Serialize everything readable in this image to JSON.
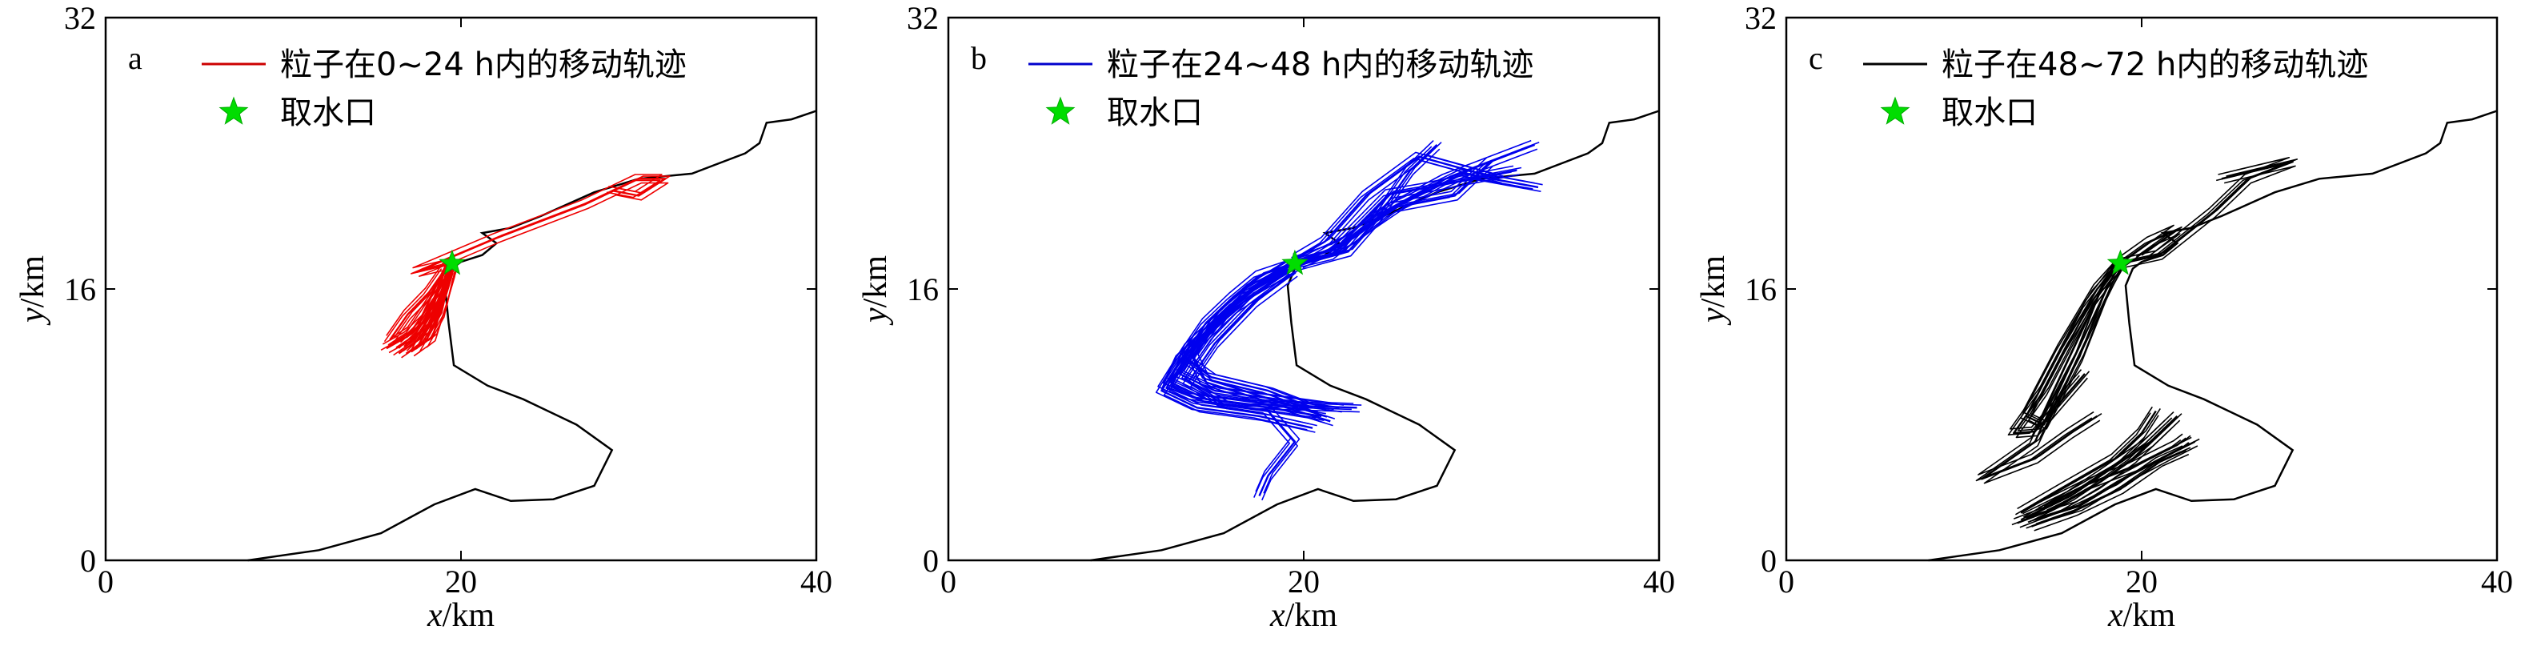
{
  "figure": {
    "panels_count": 3
  },
  "chart_data": [
    {
      "type": "line",
      "panel_letter": "a",
      "xlabel": {
        "var": "x",
        "unit": "/km"
      },
      "ylabel": {
        "var": "y",
        "unit": "/km"
      },
      "xlim": [
        0,
        40
      ],
      "ylim": [
        0,
        32
      ],
      "xticks": [
        0,
        20,
        40
      ],
      "yticks": [
        0,
        16,
        32
      ],
      "grid": false,
      "legend_position": "top-left",
      "legend": [
        {
          "label": "粒子在0~24 h内的移动轨迹",
          "kind": "line",
          "color": "#cc0000"
        },
        {
          "label": "取水口",
          "kind": "star",
          "color": "#00dd00"
        }
      ],
      "intake_point": [
        19.5,
        17.5
      ],
      "trajectory_color": "#ee0000",
      "trajectories": [
        [
          [
            19.5,
            17.5
          ],
          [
            17.5,
            17.0
          ],
          [
            22.0,
            19.0
          ],
          [
            27.0,
            21.0
          ],
          [
            30.0,
            22.5
          ],
          [
            31.5,
            22.5
          ],
          [
            30.0,
            21.5
          ],
          [
            28.5,
            21.8
          ]
        ],
        [
          [
            19.4,
            17.3
          ],
          [
            18.8,
            16.0
          ],
          [
            18.0,
            14.2
          ],
          [
            17.0,
            13.2
          ],
          [
            15.8,
            12.5
          ]
        ],
        [
          [
            19.3,
            17.0
          ],
          [
            18.5,
            15.5
          ],
          [
            17.2,
            13.5
          ],
          [
            16.2,
            12.8
          ]
        ],
        [
          [
            19.2,
            16.8
          ],
          [
            18.6,
            15.0
          ],
          [
            17.8,
            13.6
          ],
          [
            16.8,
            12.6
          ]
        ],
        [
          [
            19.4,
            17.2
          ],
          [
            19.0,
            15.8
          ],
          [
            18.2,
            13.8
          ],
          [
            17.5,
            12.5
          ]
        ],
        [
          [
            19.3,
            17.1
          ],
          [
            18.7,
            14.8
          ],
          [
            17.6,
            13.0
          ],
          [
            16.5,
            12.2
          ]
        ],
        [
          [
            19.5,
            17.0
          ],
          [
            19.0,
            15.2
          ],
          [
            18.4,
            13.2
          ],
          [
            17.9,
            12.8
          ]
        ],
        [
          [
            19.2,
            17.3
          ],
          [
            18.2,
            15.8
          ],
          [
            17.0,
            14.5
          ],
          [
            16.0,
            13.0
          ]
        ],
        [
          [
            19.4,
            16.9
          ],
          [
            18.9,
            14.6
          ],
          [
            18.0,
            12.9
          ],
          [
            17.2,
            12.3
          ]
        ]
      ]
    },
    {
      "type": "line",
      "panel_letter": "b",
      "xlabel": {
        "var": "x",
        "unit": "/km"
      },
      "ylabel": {
        "var": "y",
        "unit": "/km"
      },
      "xlim": [
        0,
        40
      ],
      "ylim": [
        0,
        32
      ],
      "xticks": [
        0,
        20,
        40
      ],
      "yticks": [
        0,
        16,
        32
      ],
      "grid": false,
      "legend_position": "top-left",
      "legend": [
        {
          "label": "粒子在24~48 h内的移动轨迹",
          "kind": "line",
          "color": "#0000cc"
        },
        {
          "label": "取水口",
          "kind": "star",
          "color": "#00dd00"
        }
      ],
      "intake_point": [
        19.5,
        17.5
      ],
      "trajectory_color": "#0000ee",
      "trajectories": [
        [
          [
            19.5,
            17.5
          ],
          [
            17.0,
            16.0
          ],
          [
            14.0,
            13.0
          ],
          [
            12.5,
            10.5
          ],
          [
            14.5,
            9.5
          ],
          [
            18.0,
            9.0
          ],
          [
            21.0,
            8.5
          ]
        ],
        [
          [
            19.4,
            17.3
          ],
          [
            16.5,
            15.5
          ],
          [
            13.5,
            12.5
          ],
          [
            12.0,
            10.0
          ],
          [
            14.0,
            9.0
          ],
          [
            17.5,
            8.5
          ],
          [
            20.5,
            7.8
          ]
        ],
        [
          [
            19.3,
            17.1
          ],
          [
            16.8,
            15.8
          ],
          [
            14.5,
            13.5
          ],
          [
            13.0,
            11.0
          ],
          [
            15.0,
            10.0
          ],
          [
            18.5,
            9.5
          ],
          [
            22.0,
            9.0
          ]
        ],
        [
          [
            19.5,
            17.0
          ],
          [
            17.2,
            15.2
          ],
          [
            15.0,
            12.8
          ],
          [
            13.5,
            10.5
          ],
          [
            15.5,
            9.2
          ],
          [
            18.0,
            8.8
          ],
          [
            19.5,
            7.0
          ],
          [
            18.0,
            5.0
          ],
          [
            17.5,
            3.8
          ]
        ],
        [
          [
            19.2,
            17.4
          ],
          [
            17.8,
            16.5
          ],
          [
            15.5,
            14.5
          ],
          [
            13.8,
            12.0
          ],
          [
            14.5,
            10.5
          ],
          [
            17.5,
            9.5
          ],
          [
            21.5,
            8.2
          ]
        ],
        [
          [
            19.4,
            17.2
          ],
          [
            16.0,
            14.8
          ],
          [
            13.0,
            11.8
          ],
          [
            12.3,
            10.2
          ],
          [
            13.8,
            9.6
          ],
          [
            17.0,
            9.2
          ],
          [
            23.0,
            9.0
          ]
        ],
        [
          [
            19.5,
            17.5
          ],
          [
            17.5,
            16.8
          ],
          [
            16.0,
            15.5
          ],
          [
            14.5,
            14.0
          ],
          [
            13.2,
            12.0
          ],
          [
            14.8,
            10.8
          ],
          [
            18.0,
            10.0
          ],
          [
            20.5,
            9.0
          ]
        ],
        [
          [
            19.5,
            17.5
          ],
          [
            21.5,
            18.0
          ],
          [
            24.5,
            20.5
          ],
          [
            28.0,
            22.5
          ],
          [
            33.0,
            24.5
          ]
        ],
        [
          [
            19.6,
            17.6
          ],
          [
            22.0,
            18.5
          ],
          [
            25.5,
            21.0
          ],
          [
            29.0,
            22.8
          ],
          [
            33.2,
            22.0
          ]
        ],
        [
          [
            19.7,
            17.4
          ],
          [
            22.5,
            18.2
          ],
          [
            24.0,
            20.0
          ],
          [
            26.0,
            23.0
          ],
          [
            27.5,
            24.5
          ]
        ],
        [
          [
            19.6,
            17.8
          ],
          [
            21.2,
            18.8
          ],
          [
            23.5,
            21.5
          ],
          [
            26.5,
            23.8
          ],
          [
            31.0,
            22.5
          ]
        ],
        [
          [
            19.8,
            17.5
          ],
          [
            22.8,
            19.0
          ],
          [
            25.0,
            20.8
          ],
          [
            28.5,
            21.5
          ],
          [
            30.5,
            23.5
          ]
        ],
        [
          [
            19.5,
            17.6
          ],
          [
            21.8,
            18.4
          ],
          [
            24.8,
            21.6
          ],
          [
            27.0,
            22.0
          ],
          [
            32.0,
            23.0
          ]
        ]
      ]
    },
    {
      "type": "line",
      "panel_letter": "c",
      "xlabel": {
        "var": "x",
        "unit": "/km"
      },
      "ylabel": {
        "var": "y",
        "unit": "/km"
      },
      "xlim": [
        0,
        40
      ],
      "ylim": [
        0,
        32
      ],
      "xticks": [
        0,
        20,
        40
      ],
      "yticks": [
        0,
        16,
        32
      ],
      "grid": false,
      "legend_position": "top-left",
      "legend": [
        {
          "label": "粒子在48~72 h内的移动轨迹",
          "kind": "line",
          "color": "#000000"
        },
        {
          "label": "取水口",
          "kind": "star",
          "color": "#00dd00"
        }
      ],
      "intake_point": [
        18.8,
        17.5
      ],
      "trajectory_color": "#000000",
      "trajectories": [
        [
          [
            18.8,
            17.5
          ],
          [
            17.5,
            16.0
          ],
          [
            15.5,
            12.5
          ],
          [
            13.5,
            8.5
          ],
          [
            14.5,
            8.0
          ],
          [
            16.5,
            12.0
          ],
          [
            18.0,
            16.0
          ],
          [
            18.8,
            17.5
          ]
        ],
        [
          [
            18.8,
            17.5
          ],
          [
            17.0,
            15.0
          ],
          [
            14.5,
            10.0
          ],
          [
            12.8,
            7.5
          ],
          [
            14.0,
            7.6
          ],
          [
            16.8,
            11.0
          ]
        ],
        [
          [
            18.6,
            17.2
          ],
          [
            17.8,
            15.5
          ],
          [
            16.0,
            11.5
          ],
          [
            14.0,
            7.0
          ],
          [
            11.0,
            4.8
          ],
          [
            14.0,
            6.0
          ],
          [
            16.0,
            7.5
          ],
          [
            17.5,
            8.5
          ]
        ],
        [
          [
            18.8,
            17.5
          ],
          [
            21.0,
            18.0
          ],
          [
            24.0,
            20.5
          ],
          [
            26.0,
            22.5
          ],
          [
            28.5,
            23.5
          ],
          [
            24.5,
            22.5
          ]
        ],
        [
          [
            18.9,
            17.6
          ],
          [
            20.5,
            18.8
          ],
          [
            22.0,
            19.5
          ],
          [
            20.0,
            18.0
          ]
        ],
        [
          [
            13.0,
            2.2
          ],
          [
            15.0,
            3.0
          ],
          [
            17.5,
            4.5
          ],
          [
            19.5,
            6.0
          ],
          [
            21.0,
            7.5
          ],
          [
            22.0,
            8.5
          ]
        ],
        [
          [
            13.5,
            2.5
          ],
          [
            16.0,
            3.8
          ],
          [
            18.0,
            5.2
          ],
          [
            20.5,
            7.0
          ],
          [
            21.5,
            8.0
          ]
        ],
        [
          [
            14.0,
            2.4
          ],
          [
            16.5,
            3.2
          ],
          [
            19.0,
            4.8
          ],
          [
            21.5,
            6.2
          ],
          [
            23.0,
            7.0
          ]
        ],
        [
          [
            13.2,
            2.8
          ],
          [
            15.5,
            4.2
          ],
          [
            18.5,
            6.0
          ],
          [
            20.0,
            7.5
          ],
          [
            20.8,
            8.8
          ]
        ],
        [
          [
            14.5,
            3.2
          ],
          [
            17.0,
            4.5
          ],
          [
            19.5,
            5.5
          ],
          [
            22.0,
            6.8
          ],
          [
            22.5,
            7.2
          ]
        ],
        [
          [
            13.8,
            2.0
          ],
          [
            16.2,
            2.9
          ],
          [
            18.8,
            4.2
          ],
          [
            21.0,
            5.8
          ],
          [
            22.5,
            6.5
          ]
        ]
      ]
    }
  ],
  "coastline": [
    [
      8,
      0
    ],
    [
      12,
      0.6
    ],
    [
      15.5,
      1.6
    ],
    [
      18.5,
      3.3
    ],
    [
      20.8,
      4.2
    ],
    [
      22.8,
      3.5
    ],
    [
      25.2,
      3.6
    ],
    [
      27.5,
      4.4
    ],
    [
      28.5,
      6.5
    ],
    [
      26.5,
      8.0
    ],
    [
      25.5,
      8.5
    ],
    [
      23.5,
      9.5
    ],
    [
      21.5,
      10.3
    ],
    [
      19.6,
      11.5
    ],
    [
      19.3,
      14.0
    ],
    [
      19.1,
      16.2
    ],
    [
      19.5,
      17.2
    ],
    [
      20.0,
      17.6
    ],
    [
      21.2,
      18.0
    ],
    [
      22.0,
      18.7
    ],
    [
      21.2,
      19.3
    ],
    [
      22.8,
      19.6
    ],
    [
      24.5,
      20.3
    ],
    [
      27.5,
      21.7
    ],
    [
      30.0,
      22.5
    ],
    [
      33.0,
      22.8
    ],
    [
      36.0,
      24.0
    ],
    [
      36.8,
      24.6
    ],
    [
      37.2,
      25.8
    ],
    [
      38.6,
      26.0
    ],
    [
      40,
      26.5
    ]
  ]
}
